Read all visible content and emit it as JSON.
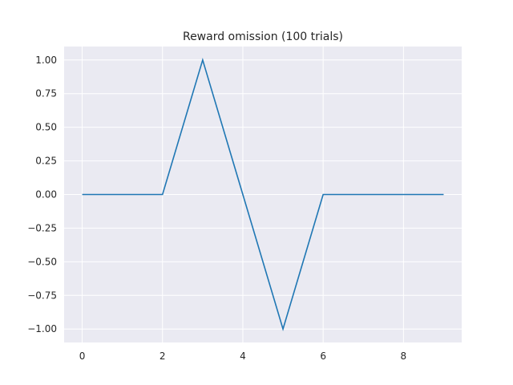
{
  "chart_data": {
    "type": "line",
    "title": "Reward omission (100 trials)",
    "xlabel": "",
    "ylabel": "",
    "x": [
      0,
      1,
      2,
      3,
      4,
      5,
      6,
      7,
      8,
      9
    ],
    "series": [
      {
        "values": [
          0,
          0,
          0,
          1,
          0,
          -1,
          0,
          0,
          0,
          0
        ]
      }
    ],
    "xlim": [
      -0.45,
      9.45
    ],
    "ylim": [
      -1.1,
      1.1
    ],
    "xticks": [
      0,
      2,
      4,
      6,
      8
    ],
    "xtick_labels": [
      "0",
      "2",
      "4",
      "6",
      "8"
    ],
    "yticks": [
      -1.0,
      -0.75,
      -0.5,
      -0.25,
      0.0,
      0.25,
      0.5,
      0.75,
      1.0
    ],
    "ytick_labels": [
      "−1.00",
      "−0.75",
      "−0.50",
      "−0.25",
      "0.00",
      "0.25",
      "0.50",
      "0.75",
      "1.00"
    ],
    "grid": true,
    "colors": {
      "background": "#eaeaf2",
      "grid": "#ffffff",
      "line": "#1f77b4",
      "text": "#262626"
    }
  }
}
